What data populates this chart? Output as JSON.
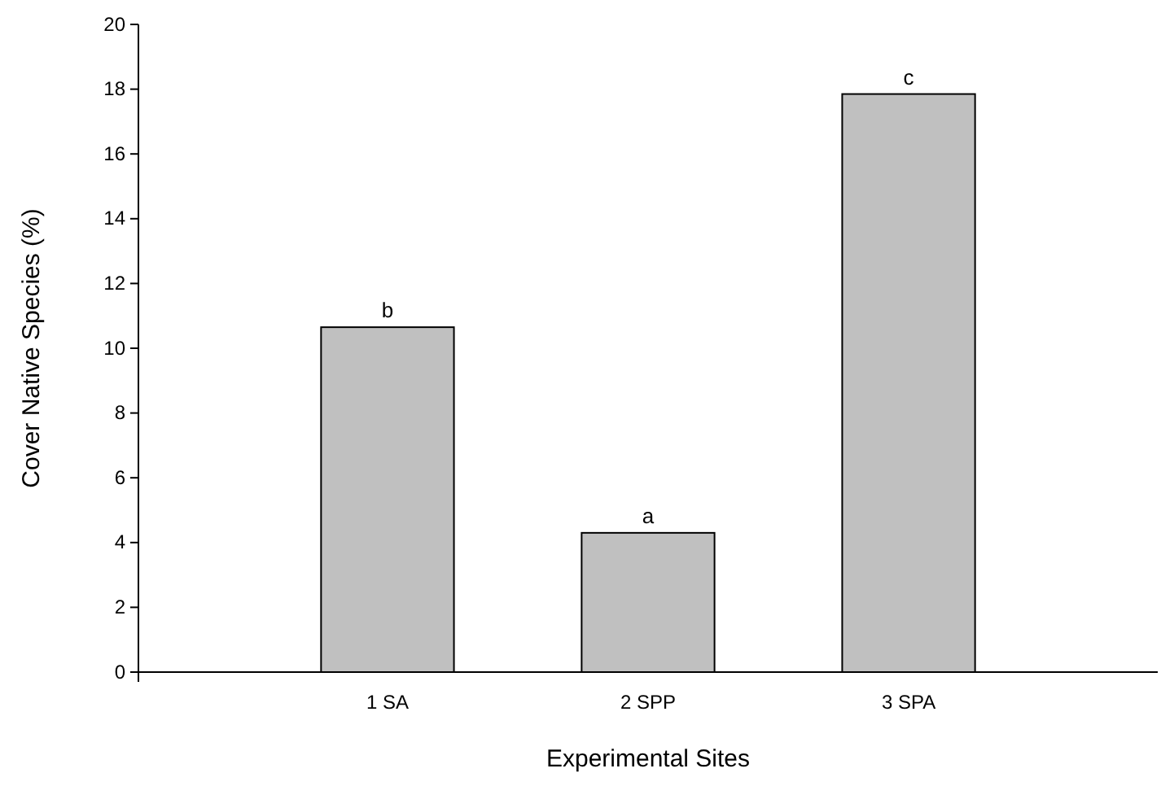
{
  "chart_data": {
    "type": "bar",
    "xlabel": "Experimental Sites",
    "ylabel": "Cover Native Species (%)",
    "categories": [
      "1 SA",
      "2 SPP",
      "3 SPA"
    ],
    "values": [
      10.65,
      4.3,
      17.85
    ],
    "color": "#c0c0c0",
    "ylim": [
      0,
      20
    ],
    "yticks": [
      0,
      2,
      4,
      6,
      8,
      10,
      12,
      14,
      16,
      18,
      20
    ],
    "grid": false,
    "annotations": [
      {
        "text": "b",
        "x": "1 SA",
        "y": 10.65
      },
      {
        "text": "a",
        "x": "2 SPP",
        "y": 4.3
      },
      {
        "text": "c",
        "x": "3 SPA",
        "y": 17.85
      }
    ]
  }
}
